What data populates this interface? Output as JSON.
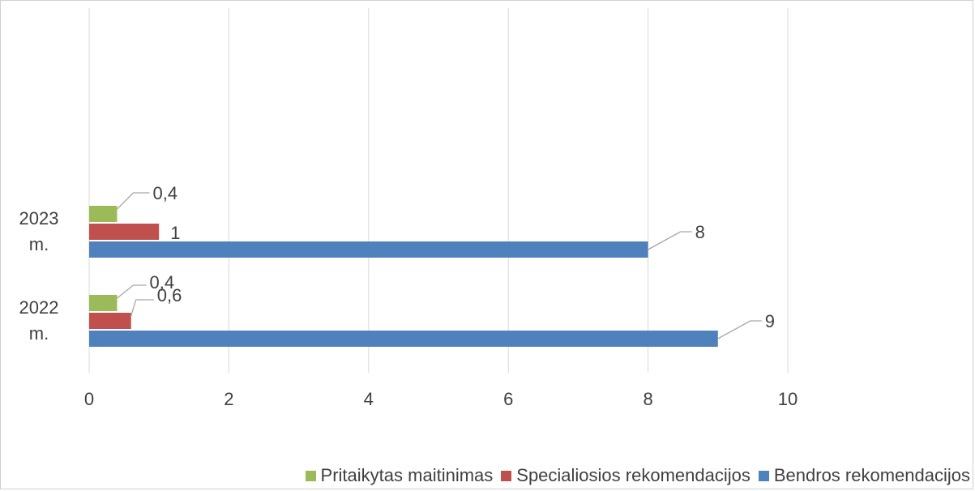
{
  "chart_data": {
    "type": "bar",
    "orientation": "horizontal",
    "categories": [
      "2022 m.",
      "2023 m."
    ],
    "series": [
      {
        "name": "Bendros rekomendacijos",
        "values": [
          9,
          8
        ],
        "labels": [
          "9",
          "8"
        ],
        "color": "#4f81bd"
      },
      {
        "name": "Specialiosios rekomendacijos",
        "values": [
          0.6,
          1
        ],
        "labels": [
          "0,6",
          "1"
        ],
        "color": "#c0504d"
      },
      {
        "name": "Pritaikytas maitinimas",
        "values": [
          0.4,
          0.4
        ],
        "labels": [
          "0,4",
          "0,4"
        ],
        "color": "#9bbb59"
      }
    ],
    "xlim": [
      0,
      10
    ],
    "x_ticks": [
      "0",
      "2",
      "4",
      "6",
      "8",
      "10"
    ],
    "grid": true,
    "legend_position": "bottom-right",
    "legend_order": [
      "Pritaikytas maitinimas",
      "Specialiosios rekomendacijos",
      "Bendros rekomendacijos"
    ]
  }
}
